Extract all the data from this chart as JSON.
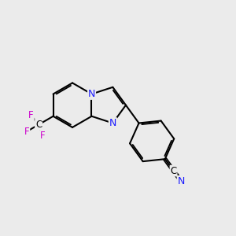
{
  "bg": "#ebebeb",
  "bc": "#000000",
  "nc": "#1a1aff",
  "fc": "#cc00cc",
  "lw": 1.5,
  "fs": 9.0,
  "xlim": [
    0,
    10
  ],
  "ylim": [
    0,
    10
  ]
}
